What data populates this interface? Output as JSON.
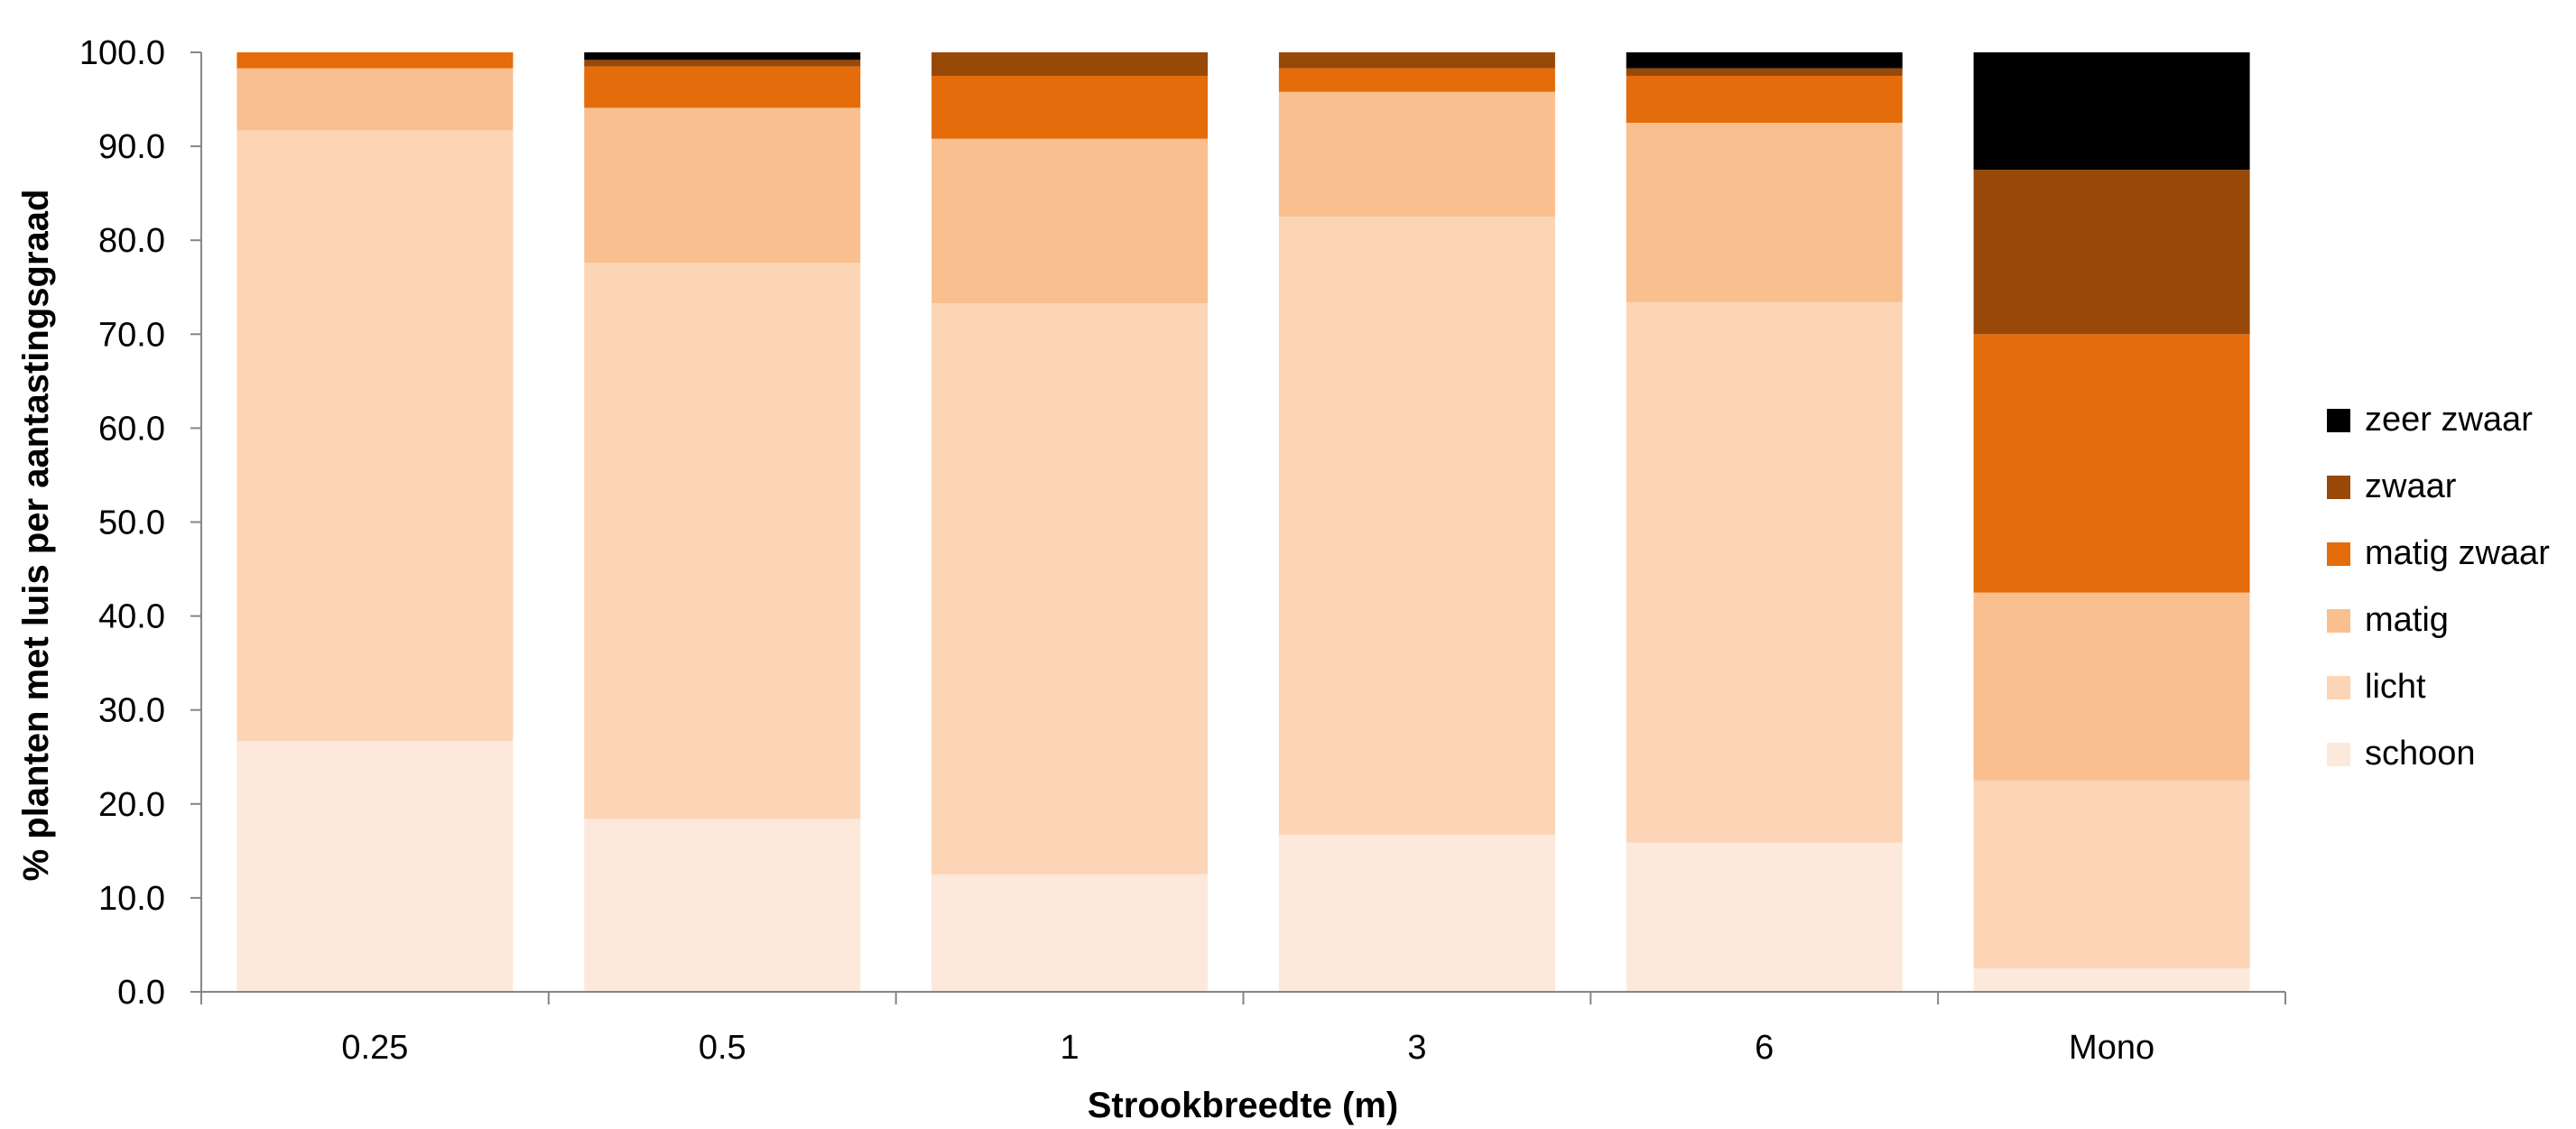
{
  "chart_data": {
    "type": "bar",
    "stacked": true,
    "categories": [
      "0.25",
      "0.5",
      "1",
      "3",
      "6",
      "Mono"
    ],
    "xlabel": "Strookbreedte (m)",
    "ylabel": "% planten met luis per aantastingsgraad",
    "ylim": [
      0,
      100
    ],
    "yticks": [
      "0.0",
      "10.0",
      "20.0",
      "30.0",
      "40.0",
      "50.0",
      "60.0",
      "70.0",
      "80.0",
      "90.0",
      "100.0"
    ],
    "grid": false,
    "legend_position": "right",
    "series": [
      {
        "name": "schoon",
        "color": "#fce9dc",
        "values": [
          26.7,
          18.4,
          12.5,
          16.7,
          15.9,
          2.5
        ]
      },
      {
        "name": "licht",
        "color": "#fbd5b5",
        "values": [
          65.0,
          59.2,
          60.8,
          65.8,
          57.5,
          20.0
        ]
      },
      {
        "name": "matig",
        "color": "#f9bf8f",
        "values": [
          6.6,
          16.5,
          17.5,
          13.3,
          19.1,
          20.0
        ]
      },
      {
        "name": "matig zwaar",
        "color": "#e46c0a",
        "values": [
          1.7,
          4.4,
          6.7,
          2.5,
          5.0,
          27.5
        ]
      },
      {
        "name": "zwaar",
        "color": "#984807",
        "values": [
          0.0,
          0.7,
          2.5,
          1.7,
          0.8,
          17.5
        ]
      },
      {
        "name": "zeer zwaar",
        "color": "#000000",
        "values": [
          0.0,
          0.8,
          0.0,
          0.0,
          1.7,
          12.5
        ]
      }
    ]
  }
}
